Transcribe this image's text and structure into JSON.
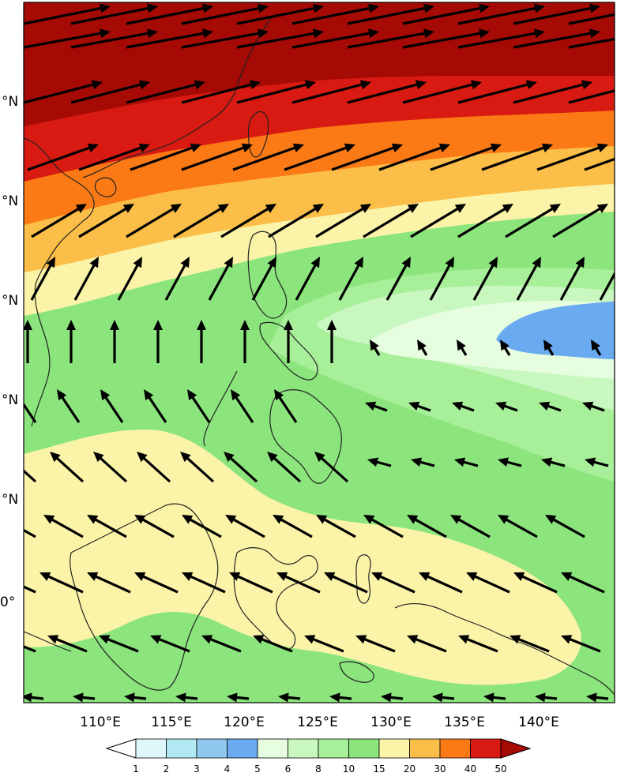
{
  "map": {
    "lat_labels": [
      "°N",
      "°N",
      "°N",
      "°N",
      "°N",
      "0°"
    ],
    "lon_labels": [
      "110°E",
      "115°E",
      "120°E",
      "125°E",
      "130°E",
      "135°E",
      "140°E"
    ]
  },
  "colorbar": {
    "levels": [
      "1",
      "2",
      "3",
      "4",
      "5",
      "6",
      "8",
      "10",
      "15",
      "20",
      "30",
      "40",
      "50"
    ],
    "colors": [
      "#ffffff",
      "#dff6fb",
      "#b2e8f3",
      "#8fcaee",
      "#6aaaf0",
      "#e6fde0",
      "#c8f7c0",
      "#a8ef9a",
      "#8be47c",
      "#fbf4a8",
      "#fbbe48",
      "#fb7a15",
      "#d81a12",
      "#a50a05"
    ]
  },
  "field": {
    "bands": [
      {
        "level": "50",
        "color": "#a50a05"
      },
      {
        "level": "40",
        "color": "#d81a12"
      },
      {
        "level": "30",
        "color": "#fb7a15"
      },
      {
        "level": "20",
        "color": "#fbbe48"
      },
      {
        "level": "15",
        "color": "#fbf4a8"
      },
      {
        "level": "10",
        "color": "#8be47c"
      },
      {
        "level": "8",
        "color": "#a8ef9a"
      },
      {
        "level": "6",
        "color": "#c8f7c0"
      },
      {
        "level": "5",
        "color": "#e6fde0"
      },
      {
        "level": "4",
        "color": "#6aaaf0"
      }
    ],
    "land_outline_color": "#222222",
    "wind_vector_color": "#000000"
  }
}
